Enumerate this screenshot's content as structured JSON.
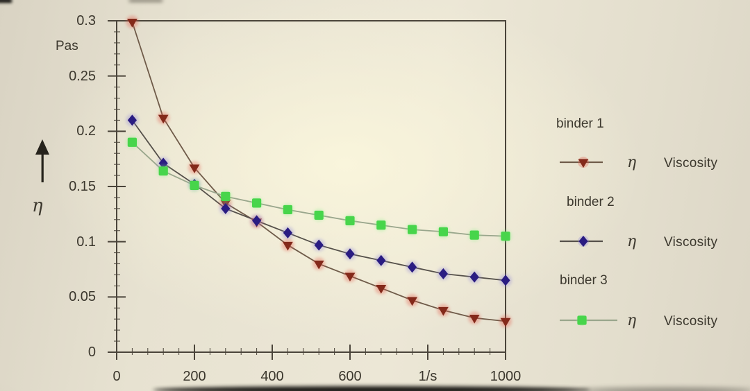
{
  "figure": {
    "text_color": "#3c382e",
    "axis_color": "#4a443a",
    "background_base": "#e8e3d2",
    "background_glow": "#faf6dc",
    "y_unit": "Pas",
    "y_symbol": "η",
    "icons": {
      "y_axis_arrow": "up-arrow-icon"
    }
  },
  "chart_data": {
    "type": "line",
    "title": "",
    "xlabel": "",
    "ylabel": "η (Pas)",
    "x_unit_tick": "1/s",
    "xlim": [
      0,
      1000
    ],
    "ylim": [
      0,
      0.3
    ],
    "grid": false,
    "legend_position": "right",
    "x_ticks": [
      0,
      200,
      400,
      600,
      800,
      1000
    ],
    "x_tick_labels": [
      "0",
      "200",
      "400",
      "600",
      "1/s",
      "1000"
    ],
    "y_ticks": [
      0,
      0.05,
      0.1,
      0.15,
      0.2,
      0.25,
      0.3
    ],
    "y_tick_labels": [
      "0",
      "0.05",
      "0.1",
      "0.15",
      "0.2",
      "0.25",
      "0.3"
    ],
    "x": [
      40,
      120,
      200,
      280,
      360,
      440,
      520,
      600,
      680,
      760,
      840,
      920,
      1000
    ],
    "series": [
      {
        "name": "binder 1",
        "marker": "triangle-down",
        "color": "#84291a",
        "halo": "#e25848",
        "line_color": "#6f5b49",
        "values": [
          0.299,
          0.212,
          0.167,
          0.135,
          0.118,
          0.097,
          0.08,
          0.069,
          0.058,
          0.047,
          0.038,
          0.031,
          0.028
        ]
      },
      {
        "name": "binder 2",
        "marker": "diamond",
        "color": "#2a1c82",
        "halo": "#8d85d6",
        "line_color": "#55504a",
        "values": [
          0.21,
          0.171,
          0.152,
          0.13,
          0.119,
          0.108,
          0.097,
          0.089,
          0.083,
          0.077,
          0.071,
          0.068,
          0.065
        ]
      },
      {
        "name": "binder 3",
        "marker": "square",
        "color": "#47d54b",
        "halo": "#8df08a",
        "line_color": "#99a68c",
        "values": [
          0.19,
          0.164,
          0.151,
          0.141,
          0.135,
          0.129,
          0.124,
          0.119,
          0.115,
          0.111,
          0.109,
          0.106,
          0.105
        ]
      }
    ]
  },
  "legend": {
    "entries": [
      {
        "title": "binder 1",
        "symbol": "η",
        "label": "Viscosity"
      },
      {
        "title": "binder 2",
        "symbol": "η",
        "label": "Viscosity"
      },
      {
        "title": "binder 3",
        "symbol": "η",
        "label": "Viscosity"
      }
    ]
  }
}
